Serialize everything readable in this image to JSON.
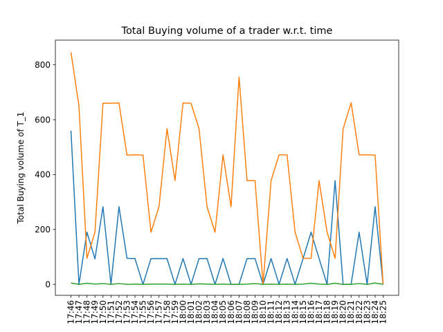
{
  "chart_data": {
    "type": "line",
    "title": "Total Buying volume of a trader w.r.t. time",
    "xlabel": "",
    "ylabel": "Total Buying volume of T_1",
    "ylim": [
      -40,
      890
    ],
    "yticks": [
      0,
      200,
      400,
      600,
      800
    ],
    "grid": false,
    "x": [
      "17:46",
      "17:47",
      "17:48",
      "17:49",
      "17:50",
      "17:51",
      "17:52",
      "17:53",
      "17:54",
      "17:55",
      "17:56",
      "17:57",
      "17:58",
      "17:59",
      "18:00",
      "18:01",
      "18:02",
      "18:03",
      "18:04",
      "18:05",
      "18:06",
      "18:07",
      "18:08",
      "18:09",
      "18:10",
      "18:11",
      "18:12",
      "18:13",
      "18:14",
      "18:15",
      "18:16",
      "18:17",
      "18:18",
      "18:19",
      "18:20",
      "18:21",
      "18:22",
      "18:23",
      "18:24",
      "18:25"
    ],
    "series": [
      {
        "color": "#1f77b4",
        "values": [
          560,
          0,
          190,
          93,
          283,
          0,
          283,
          95,
          94,
          0,
          94,
          94,
          94,
          0,
          94,
          0,
          94,
          94,
          0,
          94,
          0,
          0,
          94,
          94,
          0,
          94,
          0,
          94,
          0,
          94,
          190,
          94,
          0,
          378,
          0,
          0,
          190,
          0,
          283,
          0
        ]
      },
      {
        "color": "#ff7f0e",
        "values": [
          846,
          650,
          95,
          190,
          660,
          660,
          661,
          471,
          472,
          471,
          190,
          283,
          567,
          378,
          661,
          660,
          567,
          283,
          190,
          472,
          283,
          755,
          378,
          378,
          0,
          378,
          472,
          472,
          190,
          95,
          95,
          378,
          190,
          95,
          566,
          662,
          472,
          472,
          471,
          0
        ]
      },
      {
        "color": "#2ca02c",
        "values": [
          5,
          0,
          4,
          1,
          3,
          0,
          3,
          0,
          1,
          0,
          1,
          1,
          1,
          0,
          1,
          0,
          2,
          1,
          0,
          1,
          0,
          0,
          1,
          3,
          0,
          1,
          0,
          1,
          0,
          1,
          4,
          1,
          0,
          4,
          0,
          0,
          3,
          0,
          5,
          0
        ]
      }
    ]
  }
}
